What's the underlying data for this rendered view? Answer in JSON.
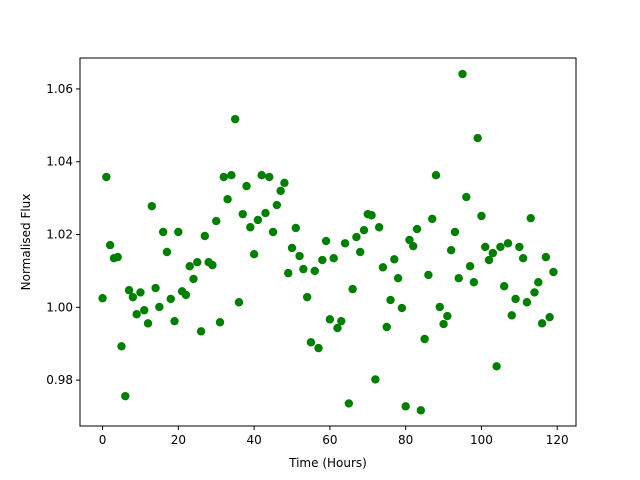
{
  "chart_data": {
    "type": "scatter",
    "xlabel": "Time (Hours)",
    "ylabel": "Normalised Flux",
    "color": "#008000",
    "xlim": [
      -5.95,
      124.95
    ],
    "ylim": [
      0.9674,
      1.0685
    ],
    "xticks": [
      0,
      20,
      40,
      60,
      80,
      100,
      120
    ],
    "yticks": [
      0.98,
      {
        "value": 1.0,
        "label": "1.00"
      },
      1.02,
      1.04,
      1.06
    ],
    "x": [
      0,
      1,
      2,
      3,
      4,
      5,
      6,
      7,
      8,
      9,
      10,
      11,
      12,
      13,
      14,
      15,
      16,
      17,
      18,
      19,
      20,
      21,
      22,
      23,
      24,
      25,
      26,
      27,
      28,
      29,
      30,
      31,
      32,
      33,
      34,
      35,
      36,
      37,
      38,
      39,
      40,
      41,
      42,
      43,
      44,
      45,
      46,
      47,
      48,
      49,
      50,
      51,
      52,
      53,
      54,
      55,
      56,
      57,
      58,
      59,
      60,
      61,
      62,
      63,
      64,
      65,
      66,
      67,
      68,
      69,
      70,
      71,
      72,
      73,
      74,
      75,
      76,
      77,
      78,
      79,
      80,
      81,
      82,
      83,
      84,
      85,
      86,
      87,
      88,
      89,
      90,
      91,
      92,
      93,
      94,
      95,
      96,
      97,
      98,
      99,
      100,
      101,
      102,
      103,
      104,
      105,
      106,
      107,
      108,
      109,
      110,
      111,
      112,
      113,
      114,
      115,
      116,
      117,
      118,
      119
    ],
    "values": [
      1.0025,
      1.0358,
      1.0171,
      1.0135,
      1.0138,
      0.9893,
      0.9756,
      1.0047,
      1.0028,
      0.9981,
      1.0041,
      0.9992,
      0.9956,
      1.0278,
      1.0053,
      1.0001,
      1.0207,
      1.0152,
      1.0023,
      0.9962,
      1.0207,
      1.0044,
      1.0034,
      1.0113,
      1.0078,
      1.0124,
      0.9934,
      1.0196,
      1.0124,
      1.0116,
      1.0237,
      0.9959,
      1.0358,
      1.0297,
      1.0363,
      1.0517,
      1.0014,
      1.0256,
      1.0333,
      1.022,
      1.0146,
      1.024,
      1.0363,
      1.0259,
      1.0358,
      1.0207,
      1.0281,
      1.032,
      1.0342,
      1.0094,
      1.0163,
      1.0218,
      1.0141,
      1.0105,
      1.0028,
      0.9904,
      1.01,
      0.9888,
      1.013,
      1.0182,
      0.9967,
      1.0135,
      0.9943,
      0.9962,
      1.0176,
      0.9736,
      1.005,
      1.0193,
      1.0152,
      1.0212,
      1.0256,
      1.0253,
      0.9802,
      1.022,
      1.011,
      0.9946,
      1.002,
      1.0132,
      1.008,
      0.9998,
      0.9728,
      1.0185,
      1.0168,
      1.0215,
      0.9717,
      0.9913,
      1.0089,
      1.0243,
      1.0363,
      1.0001,
      0.9954,
      0.9976,
      1.0157,
      1.0207,
      1.008,
      1.0641,
      1.0303,
      1.0113,
      1.0069,
      1.0465,
      1.0251,
      1.0166,
      1.013,
      1.0149,
      0.9838,
      1.0166,
      1.0058,
      1.0176,
      0.9978,
      1.0023,
      1.0166,
      1.0135,
      1.0014,
      1.0245,
      1.0041,
      1.0069,
      0.9956,
      1.0138,
      0.9973,
      1.0097
    ]
  }
}
